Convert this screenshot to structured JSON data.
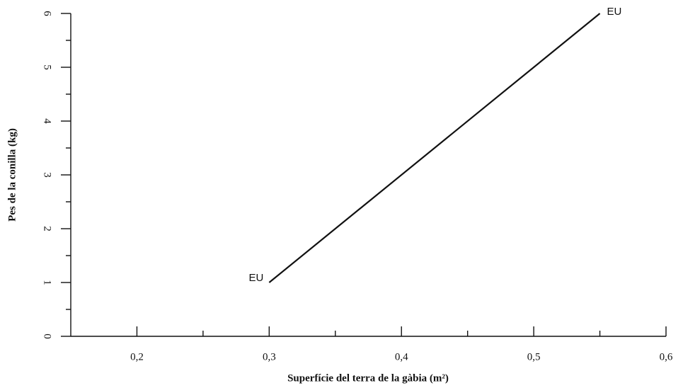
{
  "chart_data": {
    "type": "line",
    "x_label": "Superfície del terra de la gàbia (m²)",
    "y_label": "Pes de la conilla (kg)",
    "xlim": [
      0.15,
      0.6
    ],
    "ylim": [
      0,
      6
    ],
    "xticks": [
      {
        "value": 0.2,
        "label": "0,2"
      },
      {
        "value": 0.3,
        "label": "0,3"
      },
      {
        "value": 0.4,
        "label": "0,4"
      },
      {
        "value": 0.5,
        "label": "0,5"
      },
      {
        "value": 0.6,
        "label": "0,6"
      }
    ],
    "xminorticks": [
      0.25,
      0.35,
      0.45,
      0.55
    ],
    "yticks": [
      0,
      1,
      2,
      3,
      4,
      5,
      6
    ],
    "yminorticks": [
      0.5,
      1.5,
      2.5,
      3.5,
      4.5,
      5.5
    ],
    "series": [
      {
        "color": "#111111",
        "x": [
          0.3,
          0.55
        ],
        "values": [
          1,
          6
        ],
        "point_labels": [
          "EU",
          "EU"
        ]
      }
    ]
  }
}
